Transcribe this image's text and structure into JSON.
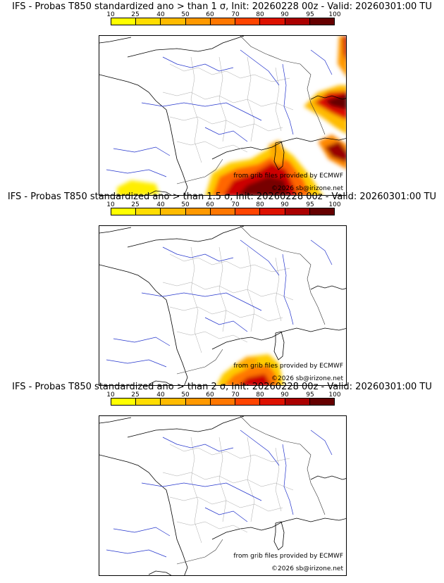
{
  "colors": {
    "c10": "#ffff00",
    "c25": "#ffe000",
    "c40": "#ffbb00",
    "c50": "#ff9900",
    "c60": "#ff7700",
    "c70": "#ff5500",
    "c80": "#ee2200",
    "c90": "#cc0000",
    "c95": "#990000",
    "c100": "#660000",
    "coast": "#000000",
    "river": "#2233cc",
    "border": "#aaaaaa"
  },
  "colorbar_ticks": [
    "10",
    "25",
    "40",
    "50",
    "60",
    "70",
    "80",
    "90",
    "95",
    "100"
  ],
  "panels": [
    {
      "title": "IFS - Probas T850  standardized ano > than 1 σ, Init: 20260228 00z - Valid: 20260301:00 TU",
      "credit_source": "from grib files provided by ECMWF",
      "credit_site": "©2026 sb@irizone.net",
      "probability_level": "high"
    },
    {
      "title": "IFS - Probas T850  standardized ano > than 1.5 σ, Init: 20260228 00z - Valid: 20260301:00 TU",
      "credit_source": "from grib files provided by ECMWF",
      "credit_site": "©2026 sb@irizone.net",
      "probability_level": "medium"
    },
    {
      "title": "IFS - Probas T850  standardized ano > than 2 σ, Init: 20260228 00z - Valid: 20260301:00 TU",
      "credit_source": "from grib files provided by ECMWF",
      "credit_site": "©2026 sb@irizone.net",
      "probability_level": "none"
    }
  ]
}
